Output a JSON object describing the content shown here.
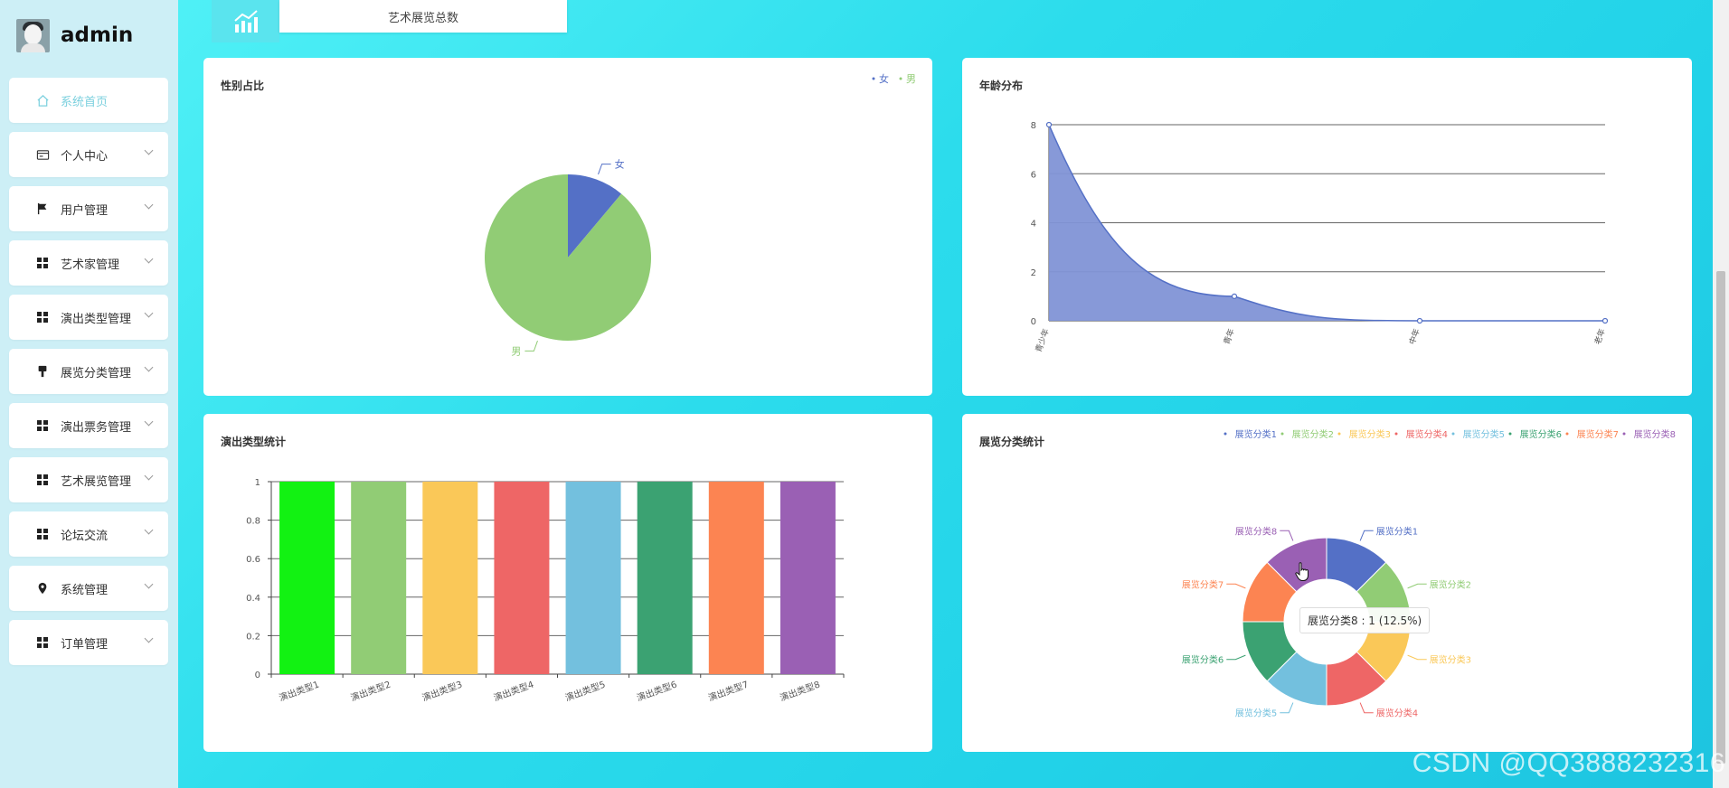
{
  "user": {
    "name": "admin"
  },
  "sidebar": {
    "items": [
      {
        "label": "系统首页",
        "icon": "home-icon",
        "active": true
      },
      {
        "label": "个人中心",
        "icon": "id-card-icon"
      },
      {
        "label": "用户管理",
        "icon": "flag-icon"
      },
      {
        "label": "艺术家管理",
        "icon": "grid-icon"
      },
      {
        "label": "演出类型管理",
        "icon": "grid-icon"
      },
      {
        "label": "展览分类管理",
        "icon": "brush-icon"
      },
      {
        "label": "演出票务管理",
        "icon": "grid-icon"
      },
      {
        "label": "艺术展览管理",
        "icon": "grid-icon"
      },
      {
        "label": "论坛交流",
        "icon": "grid-icon"
      },
      {
        "label": "系统管理",
        "icon": "location-icon"
      },
      {
        "label": "订单管理",
        "icon": "grid-icon"
      }
    ]
  },
  "top_stat": {
    "label": "艺术展览总数",
    "icon": "chart-up-icon"
  },
  "charts": {
    "gender": {
      "title": "性别占比"
    },
    "age": {
      "title": "年龄分布"
    },
    "show_type": {
      "title": "演出类型统计"
    },
    "exhibition": {
      "title": "展览分类统计",
      "tooltip": "展览分类8 : 1 (12.5%)"
    }
  },
  "watermark": "CSDN @QQ3888232316",
  "colors": {
    "accent": "#7bd0de",
    "palette": [
      "#5470c6",
      "#91cc75",
      "#fac858",
      "#ee6666",
      "#73c0de",
      "#3ba272",
      "#fc8452",
      "#9a60b4"
    ],
    "bar_first": "#12f212",
    "area_fill": "#8193d6"
  },
  "chart_data": [
    {
      "type": "pie",
      "title": "性别占比",
      "categories": [
        "女",
        "男"
      ],
      "values": [
        1,
        8
      ],
      "legend": "top-right",
      "colors": [
        "#5470c6",
        "#91cc75"
      ]
    },
    {
      "type": "area",
      "title": "年龄分布",
      "categories": [
        "青少年",
        "青年",
        "中年",
        "老年"
      ],
      "values": [
        8,
        1,
        0,
        0
      ],
      "ylim": [
        0,
        8
      ],
      "yticks": [
        0,
        2,
        4,
        6,
        8
      ],
      "grid": true
    },
    {
      "type": "bar",
      "title": "演出类型统计",
      "categories": [
        "演出类型1",
        "演出类型2",
        "演出类型3",
        "演出类型4",
        "演出类型5",
        "演出类型6",
        "演出类型7",
        "演出类型8"
      ],
      "values": [
        1,
        1,
        1,
        1,
        1,
        1,
        1,
        1
      ],
      "ylim": [
        0,
        1
      ],
      "yticks": [
        0,
        0.2,
        0.4,
        0.6,
        0.8,
        1
      ],
      "colors": [
        "#12f212",
        "#91cc75",
        "#fac858",
        "#ee6666",
        "#73c0de",
        "#3ba272",
        "#fc8452",
        "#9a60b4"
      ]
    },
    {
      "type": "pie",
      "donut": true,
      "title": "展览分类统计",
      "categories": [
        "展览分类1",
        "展览分类2",
        "展览分类3",
        "展览分类4",
        "展览分类5",
        "展览分类6",
        "展览分类7",
        "展览分类8"
      ],
      "values": [
        1,
        1,
        1,
        1,
        1,
        1,
        1,
        1
      ],
      "legend": "top-right",
      "colors": [
        "#5470c6",
        "#91cc75",
        "#fac858",
        "#ee6666",
        "#73c0de",
        "#3ba272",
        "#fc8452",
        "#9a60b4"
      ]
    }
  ]
}
